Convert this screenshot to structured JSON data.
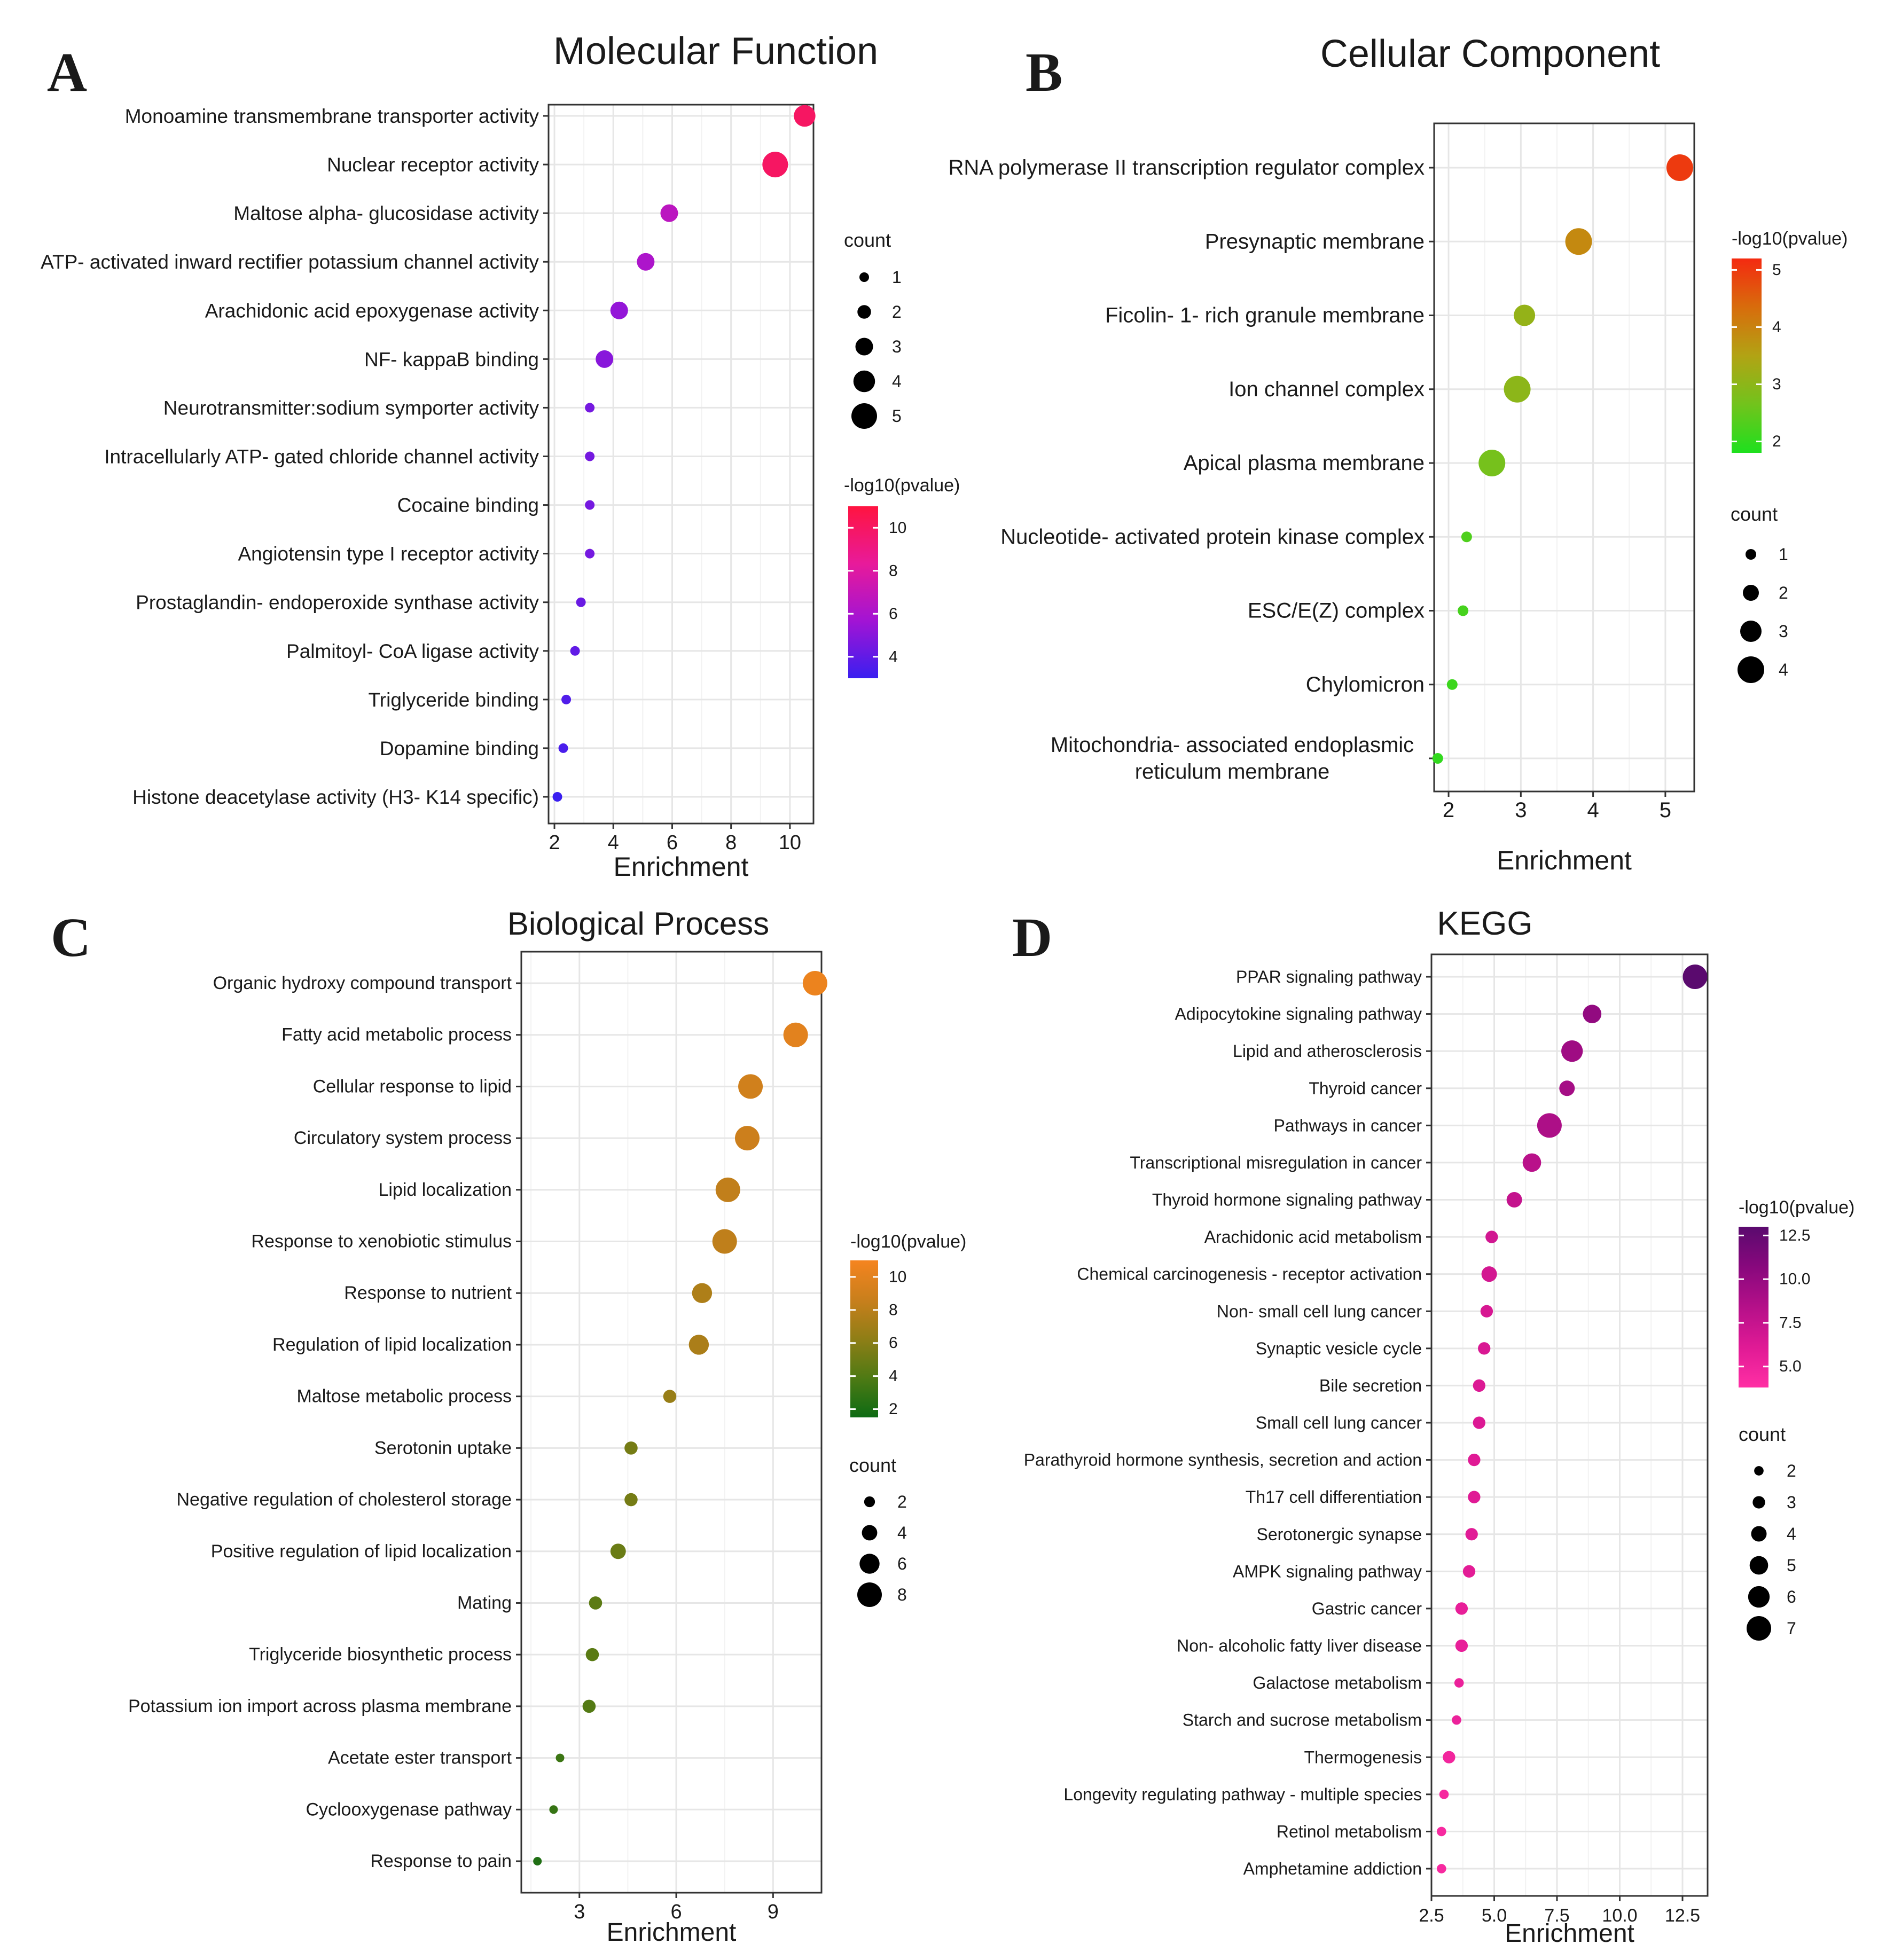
{
  "chart_data": [
    {
      "panel_label": "A",
      "type": "scatter",
      "title": "Molecular Function",
      "xlabel": "Enrichment",
      "xlim": [
        1.8,
        10.8
      ],
      "xticks": [
        2,
        4,
        6,
        8,
        10
      ],
      "xtick_labels": [
        "2",
        "4",
        "6",
        "8",
        "10"
      ],
      "categories": [
        "Monoamine transmembrane transporter activity",
        "Nuclear receptor activity",
        "Maltose alpha- glucosidase activity",
        "ATP- activated inward rectifier potassium channel activity",
        "Arachidonic acid epoxygenase activity",
        "NF- kappaB binding",
        "Neurotransmitter:sodium symporter activity",
        "Intracellularly ATP- gated chloride channel activity",
        "Cocaine binding",
        "Angiotensin type I receptor activity",
        "Prostaglandin- endoperoxide synthase activity",
        "Palmitoyl- CoA ligase activity",
        "Triglyceride binding",
        "Dopamine binding",
        "Histone deacetylase activity (H3- K14 specific)"
      ],
      "points": [
        {
          "y": "Monoamine transmembrane transporter activity",
          "x": 10.5,
          "count": 4,
          "log10p": 10.0
        },
        {
          "y": "Nuclear receptor activity",
          "x": 9.5,
          "count": 5,
          "log10p": 10.0
        },
        {
          "y": "Maltose alpha- glucosidase activity",
          "x": 5.9,
          "count": 3,
          "log10p": 6.6
        },
        {
          "y": "ATP- activated inward rectifier potassium channel activity",
          "x": 5.1,
          "count": 3,
          "log10p": 6.1
        },
        {
          "y": "Arachidonic acid epoxygenase activity",
          "x": 4.2,
          "count": 3,
          "log10p": 5.3
        },
        {
          "y": "NF- kappaB binding",
          "x": 3.7,
          "count": 3,
          "log10p": 5.0
        },
        {
          "y": "Neurotransmitter:sodium symporter activity",
          "x": 3.2,
          "count": 1,
          "log10p": 4.5
        },
        {
          "y": "Intracellularly ATP- gated chloride channel activity",
          "x": 3.2,
          "count": 1,
          "log10p": 4.5
        },
        {
          "y": "Cocaine binding",
          "x": 3.2,
          "count": 1,
          "log10p": 4.5
        },
        {
          "y": "Angiotensin type I receptor activity",
          "x": 3.2,
          "count": 1,
          "log10p": 4.5
        },
        {
          "y": "Prostaglandin- endoperoxide synthase activity",
          "x": 2.9,
          "count": 1,
          "log10p": 4.2
        },
        {
          "y": "Palmitoyl- CoA ligase activity",
          "x": 2.7,
          "count": 1,
          "log10p": 4.0
        },
        {
          "y": "Triglyceride binding",
          "x": 2.4,
          "count": 1,
          "log10p": 3.6
        },
        {
          "y": "Dopamine binding",
          "x": 2.3,
          "count": 1,
          "log10p": 3.4
        },
        {
          "y": "Histone deacetylase activity (H3- K14 specific)",
          "x": 2.1,
          "count": 1,
          "log10p": 3.0
        }
      ],
      "color_legend": {
        "title": "-log10(pvalue)",
        "range": [
          3.0,
          11.0
        ],
        "ticks": [
          4,
          6,
          8,
          10
        ],
        "tick_labels": [
          "4",
          "6",
          "8",
          "10"
        ],
        "stops": [
          "#3a1ff0",
          "#a214d4",
          "#e81a9a",
          "#ff1440"
        ]
      },
      "size_legend": {
        "title": "count",
        "values": [
          1,
          2,
          3,
          4,
          5
        ],
        "labels": [
          "1",
          "2",
          "3",
          "4",
          "5"
        ]
      },
      "size_range": [
        1,
        5
      ]
    },
    {
      "panel_label": "B",
      "type": "scatter",
      "title": "Cellular Component",
      "xlabel": "Enrichment",
      "xlim": [
        1.8,
        5.4
      ],
      "xticks": [
        2,
        3,
        4,
        5
      ],
      "xtick_labels": [
        "2",
        "3",
        "4",
        "5"
      ],
      "categories": [
        "RNA polymerase II transcription regulator complex",
        "Presynaptic membrane",
        "Ficolin- 1- rich granule membrane",
        "Ion channel complex",
        "Apical plasma membrane",
        "Nucleotide- activated protein kinase complex",
        "ESC/E(Z) complex",
        "Chylomicron",
        "Mitochondria- associated endoplasmic\nreticulum membrane"
      ],
      "points": [
        {
          "y": "RNA polymerase II transcription regulator complex",
          "x": 5.2,
          "count": 4,
          "log10p": 5.0
        },
        {
          "y": "Presynaptic membrane",
          "x": 3.8,
          "count": 4,
          "log10p": 3.9
        },
        {
          "y": "Ficolin- 1- rich granule membrane",
          "x": 3.05,
          "count": 3,
          "log10p": 3.1
        },
        {
          "y": "Ion channel complex",
          "x": 2.95,
          "count": 4,
          "log10p": 3.0
        },
        {
          "y": "Apical plasma membrane",
          "x": 2.6,
          "count": 4,
          "log10p": 2.7
        },
        {
          "y": "Nucleotide- activated protein kinase complex",
          "x": 2.25,
          "count": 1,
          "log10p": 2.3
        },
        {
          "y": "ESC/E(Z) complex",
          "x": 2.2,
          "count": 1,
          "log10p": 2.2
        },
        {
          "y": "Chylomicron",
          "x": 2.05,
          "count": 1,
          "log10p": 2.1
        },
        {
          "y": "Mitochondria- associated endoplasmic\nreticulum membrane",
          "x": 1.85,
          "count": 1,
          "log10p": 2.0
        }
      ],
      "color_legend": {
        "title": "-log10(pvalue)",
        "range": [
          1.8,
          5.2
        ],
        "ticks": [
          2,
          3,
          4,
          5
        ],
        "tick_labels": [
          "2",
          "3",
          "4",
          "5"
        ],
        "stops": [
          "#1ee01e",
          "#72c31c",
          "#b2a314",
          "#d86c0c",
          "#f42a10"
        ]
      },
      "size_legend": {
        "title": "count",
        "values": [
          1,
          2,
          3,
          4
        ],
        "labels": [
          "1",
          "2",
          "3",
          "4"
        ]
      },
      "size_range": [
        1,
        4
      ]
    },
    {
      "panel_label": "C",
      "type": "scatter",
      "title": "Biological Process",
      "xlabel": "Enrichment",
      "xlim": [
        1.2,
        10.5
      ],
      "xticks": [
        3,
        6,
        9
      ],
      "xtick_labels": [
        "3",
        "6",
        "9"
      ],
      "categories": [
        "Organic hydroxy compound transport",
        "Fatty acid metabolic process",
        "Cellular response to lipid",
        "Circulatory system process",
        "Lipid localization",
        "Response to xenobiotic stimulus",
        "Response to nutrient",
        "Regulation of lipid localization",
        "Maltose metabolic process",
        "Serotonin uptake",
        "Negative regulation of cholesterol storage",
        "Positive regulation of lipid localization",
        "Mating",
        "Triglyceride biosynthetic process",
        "Potassium ion import across plasma membrane",
        "Acetate ester transport",
        "Cyclooxygenase pathway",
        "Response to pain"
      ],
      "points": [
        {
          "y": "Organic hydroxy compound transport",
          "x": 10.3,
          "count": 8,
          "log10p": 10.5
        },
        {
          "y": "Fatty acid metabolic process",
          "x": 9.7,
          "count": 8,
          "log10p": 10.0
        },
        {
          "y": "Cellular response to lipid",
          "x": 8.3,
          "count": 8,
          "log10p": 9.0
        },
        {
          "y": "Circulatory system process",
          "x": 8.2,
          "count": 8,
          "log10p": 8.8
        },
        {
          "y": "Lipid localization",
          "x": 7.6,
          "count": 8,
          "log10p": 8.3
        },
        {
          "y": "Response to xenobiotic stimulus",
          "x": 7.5,
          "count": 8,
          "log10p": 8.2
        },
        {
          "y": "Response to nutrient",
          "x": 6.8,
          "count": 6,
          "log10p": 7.5
        },
        {
          "y": "Regulation of lipid localization",
          "x": 6.7,
          "count": 6,
          "log10p": 7.4
        },
        {
          "y": "Maltose metabolic process",
          "x": 5.8,
          "count": 3,
          "log10p": 6.6
        },
        {
          "y": "Serotonin uptake",
          "x": 4.6,
          "count": 3,
          "log10p": 5.3
        },
        {
          "y": "Negative regulation of cholesterol storage",
          "x": 4.6,
          "count": 3,
          "log10p": 5.3
        },
        {
          "y": "Positive regulation of lipid localization",
          "x": 4.2,
          "count": 4,
          "log10p": 4.9
        },
        {
          "y": "Mating",
          "x": 3.5,
          "count": 3,
          "log10p": 4.4
        },
        {
          "y": "Triglyceride biosynthetic process",
          "x": 3.4,
          "count": 3,
          "log10p": 4.3
        },
        {
          "y": "Potassium ion import across plasma membrane",
          "x": 3.3,
          "count": 3,
          "log10p": 4.1
        },
        {
          "y": "Acetate ester transport",
          "x": 2.4,
          "count": 1,
          "log10p": 3.2
        },
        {
          "y": "Cyclooxygenase pathway",
          "x": 2.2,
          "count": 1,
          "log10p": 3.0
        },
        {
          "y": "Response to pain",
          "x": 1.7,
          "count": 1,
          "log10p": 2.2
        }
      ],
      "color_legend": {
        "title": "-log10(pvalue)",
        "range": [
          1.5,
          11.0
        ],
        "ticks": [
          2,
          4,
          6,
          8,
          10
        ],
        "tick_labels": [
          "2",
          "4",
          "6",
          "8",
          "10"
        ],
        "stops": [
          "#0d6b14",
          "#4e7a14",
          "#8f7e16",
          "#c97f1c",
          "#f5841f"
        ]
      },
      "size_legend": {
        "title": "count",
        "values": [
          2,
          4,
          6,
          8
        ],
        "labels": [
          "2",
          "4",
          "6",
          "8"
        ]
      },
      "size_range": [
        1,
        8
      ]
    },
    {
      "panel_label": "D",
      "type": "scatter",
      "title": "KEGG",
      "xlabel": "Enrichment",
      "xlim": [
        2.5,
        13.5
      ],
      "xticks": [
        2.5,
        5.0,
        7.5,
        10.0,
        12.5
      ],
      "xtick_labels": [
        "2.5",
        "5.0",
        "7.5",
        "10.0",
        "12.5"
      ],
      "categories": [
        "PPAR signaling pathway",
        "Adipocytokine signaling pathway",
        "Lipid and atherosclerosis",
        "Thyroid cancer",
        "Pathways in cancer",
        "Transcriptional misregulation in cancer",
        "Thyroid hormone signaling pathway",
        "Arachidonic acid metabolism",
        "Chemical carcinogenesis -  receptor activation",
        "Non- small cell lung cancer",
        "Synaptic vesicle cycle",
        "Bile secretion",
        "Small cell lung cancer",
        "Parathyroid hormone synthesis, secretion and action",
        "Th17 cell differentiation",
        "Serotonergic synapse",
        "AMPK signaling pathway",
        "Gastric cancer",
        "Non- alcoholic fatty liver disease",
        "Galactose metabolism",
        "Starch and sucrose metabolism",
        "Thermogenesis",
        "Longevity regulating pathway -  multiple species",
        "Retinol metabolism",
        "Amphetamine addiction"
      ],
      "points": [
        {
          "y": "PPAR signaling pathway",
          "x": 13.0,
          "count": 7,
          "log10p": 13.0
        },
        {
          "y": "Adipocytokine signaling pathway",
          "x": 8.9,
          "count": 5,
          "log10p": 10.2
        },
        {
          "y": "Lipid and atherosclerosis",
          "x": 8.1,
          "count": 6,
          "log10p": 9.5
        },
        {
          "y": "Thyroid cancer",
          "x": 7.9,
          "count": 4,
          "log10p": 9.2
        },
        {
          "y": "Pathways in cancer",
          "x": 7.2,
          "count": 7,
          "log10p": 8.8
        },
        {
          "y": "Transcriptional misregulation in cancer",
          "x": 6.5,
          "count": 5,
          "log10p": 8.2
        },
        {
          "y": "Thyroid hormone signaling pathway",
          "x": 5.8,
          "count": 4,
          "log10p": 7.6
        },
        {
          "y": "Arachidonic acid metabolism",
          "x": 4.9,
          "count": 3,
          "log10p": 6.9
        },
        {
          "y": "Chemical carcinogenesis -  receptor activation",
          "x": 4.8,
          "count": 4,
          "log10p": 6.8
        },
        {
          "y": "Non- small cell lung cancer",
          "x": 4.7,
          "count": 3,
          "log10p": 6.6
        },
        {
          "y": "Synaptic vesicle cycle",
          "x": 4.6,
          "count": 3,
          "log10p": 6.5
        },
        {
          "y": "Bile secretion",
          "x": 4.4,
          "count": 3,
          "log10p": 6.3
        },
        {
          "y": "Small cell lung cancer",
          "x": 4.4,
          "count": 3,
          "log10p": 6.3
        },
        {
          "y": "Parathyroid hormone synthesis, secretion and action",
          "x": 4.2,
          "count": 3,
          "log10p": 6.1
        },
        {
          "y": "Th17 cell differentiation",
          "x": 4.2,
          "count": 3,
          "log10p": 6.1
        },
        {
          "y": "Serotonergic synapse",
          "x": 4.1,
          "count": 3,
          "log10p": 6.0
        },
        {
          "y": "AMPK signaling pathway",
          "x": 4.0,
          "count": 3,
          "log10p": 5.9
        },
        {
          "y": "Gastric cancer",
          "x": 3.7,
          "count": 3,
          "log10p": 5.5
        },
        {
          "y": "Non- alcoholic fatty liver disease",
          "x": 3.7,
          "count": 3,
          "log10p": 5.5
        },
        {
          "y": "Galactose metabolism",
          "x": 3.6,
          "count": 2,
          "log10p": 5.3
        },
        {
          "y": "Starch and sucrose metabolism",
          "x": 3.5,
          "count": 2,
          "log10p": 5.2
        },
        {
          "y": "Thermogenesis",
          "x": 3.2,
          "count": 3,
          "log10p": 4.8
        },
        {
          "y": "Longevity regulating pathway -  multiple species",
          "x": 3.0,
          "count": 2,
          "log10p": 4.5
        },
        {
          "y": "Retinol metabolism",
          "x": 2.9,
          "count": 2,
          "log10p": 4.4
        },
        {
          "y": "Amphetamine addiction",
          "x": 2.9,
          "count": 2,
          "log10p": 4.4
        }
      ],
      "color_legend": {
        "title": "-log10(pvalue)",
        "range": [
          3.8,
          13.0
        ],
        "ticks": [
          5.0,
          7.5,
          10.0,
          12.5
        ],
        "tick_labels": [
          "5.0",
          "7.5",
          "10.0",
          "12.5"
        ],
        "stops": [
          "#ff2fa4",
          "#e01a95",
          "#b51089",
          "#88087d",
          "#5a0a6e"
        ]
      },
      "size_legend": {
        "title": "count",
        "values": [
          2,
          3,
          4,
          5,
          6,
          7
        ],
        "labels": [
          "2",
          "3",
          "4",
          "5",
          "6",
          "7"
        ]
      },
      "size_range": [
        1,
        7
      ]
    }
  ]
}
